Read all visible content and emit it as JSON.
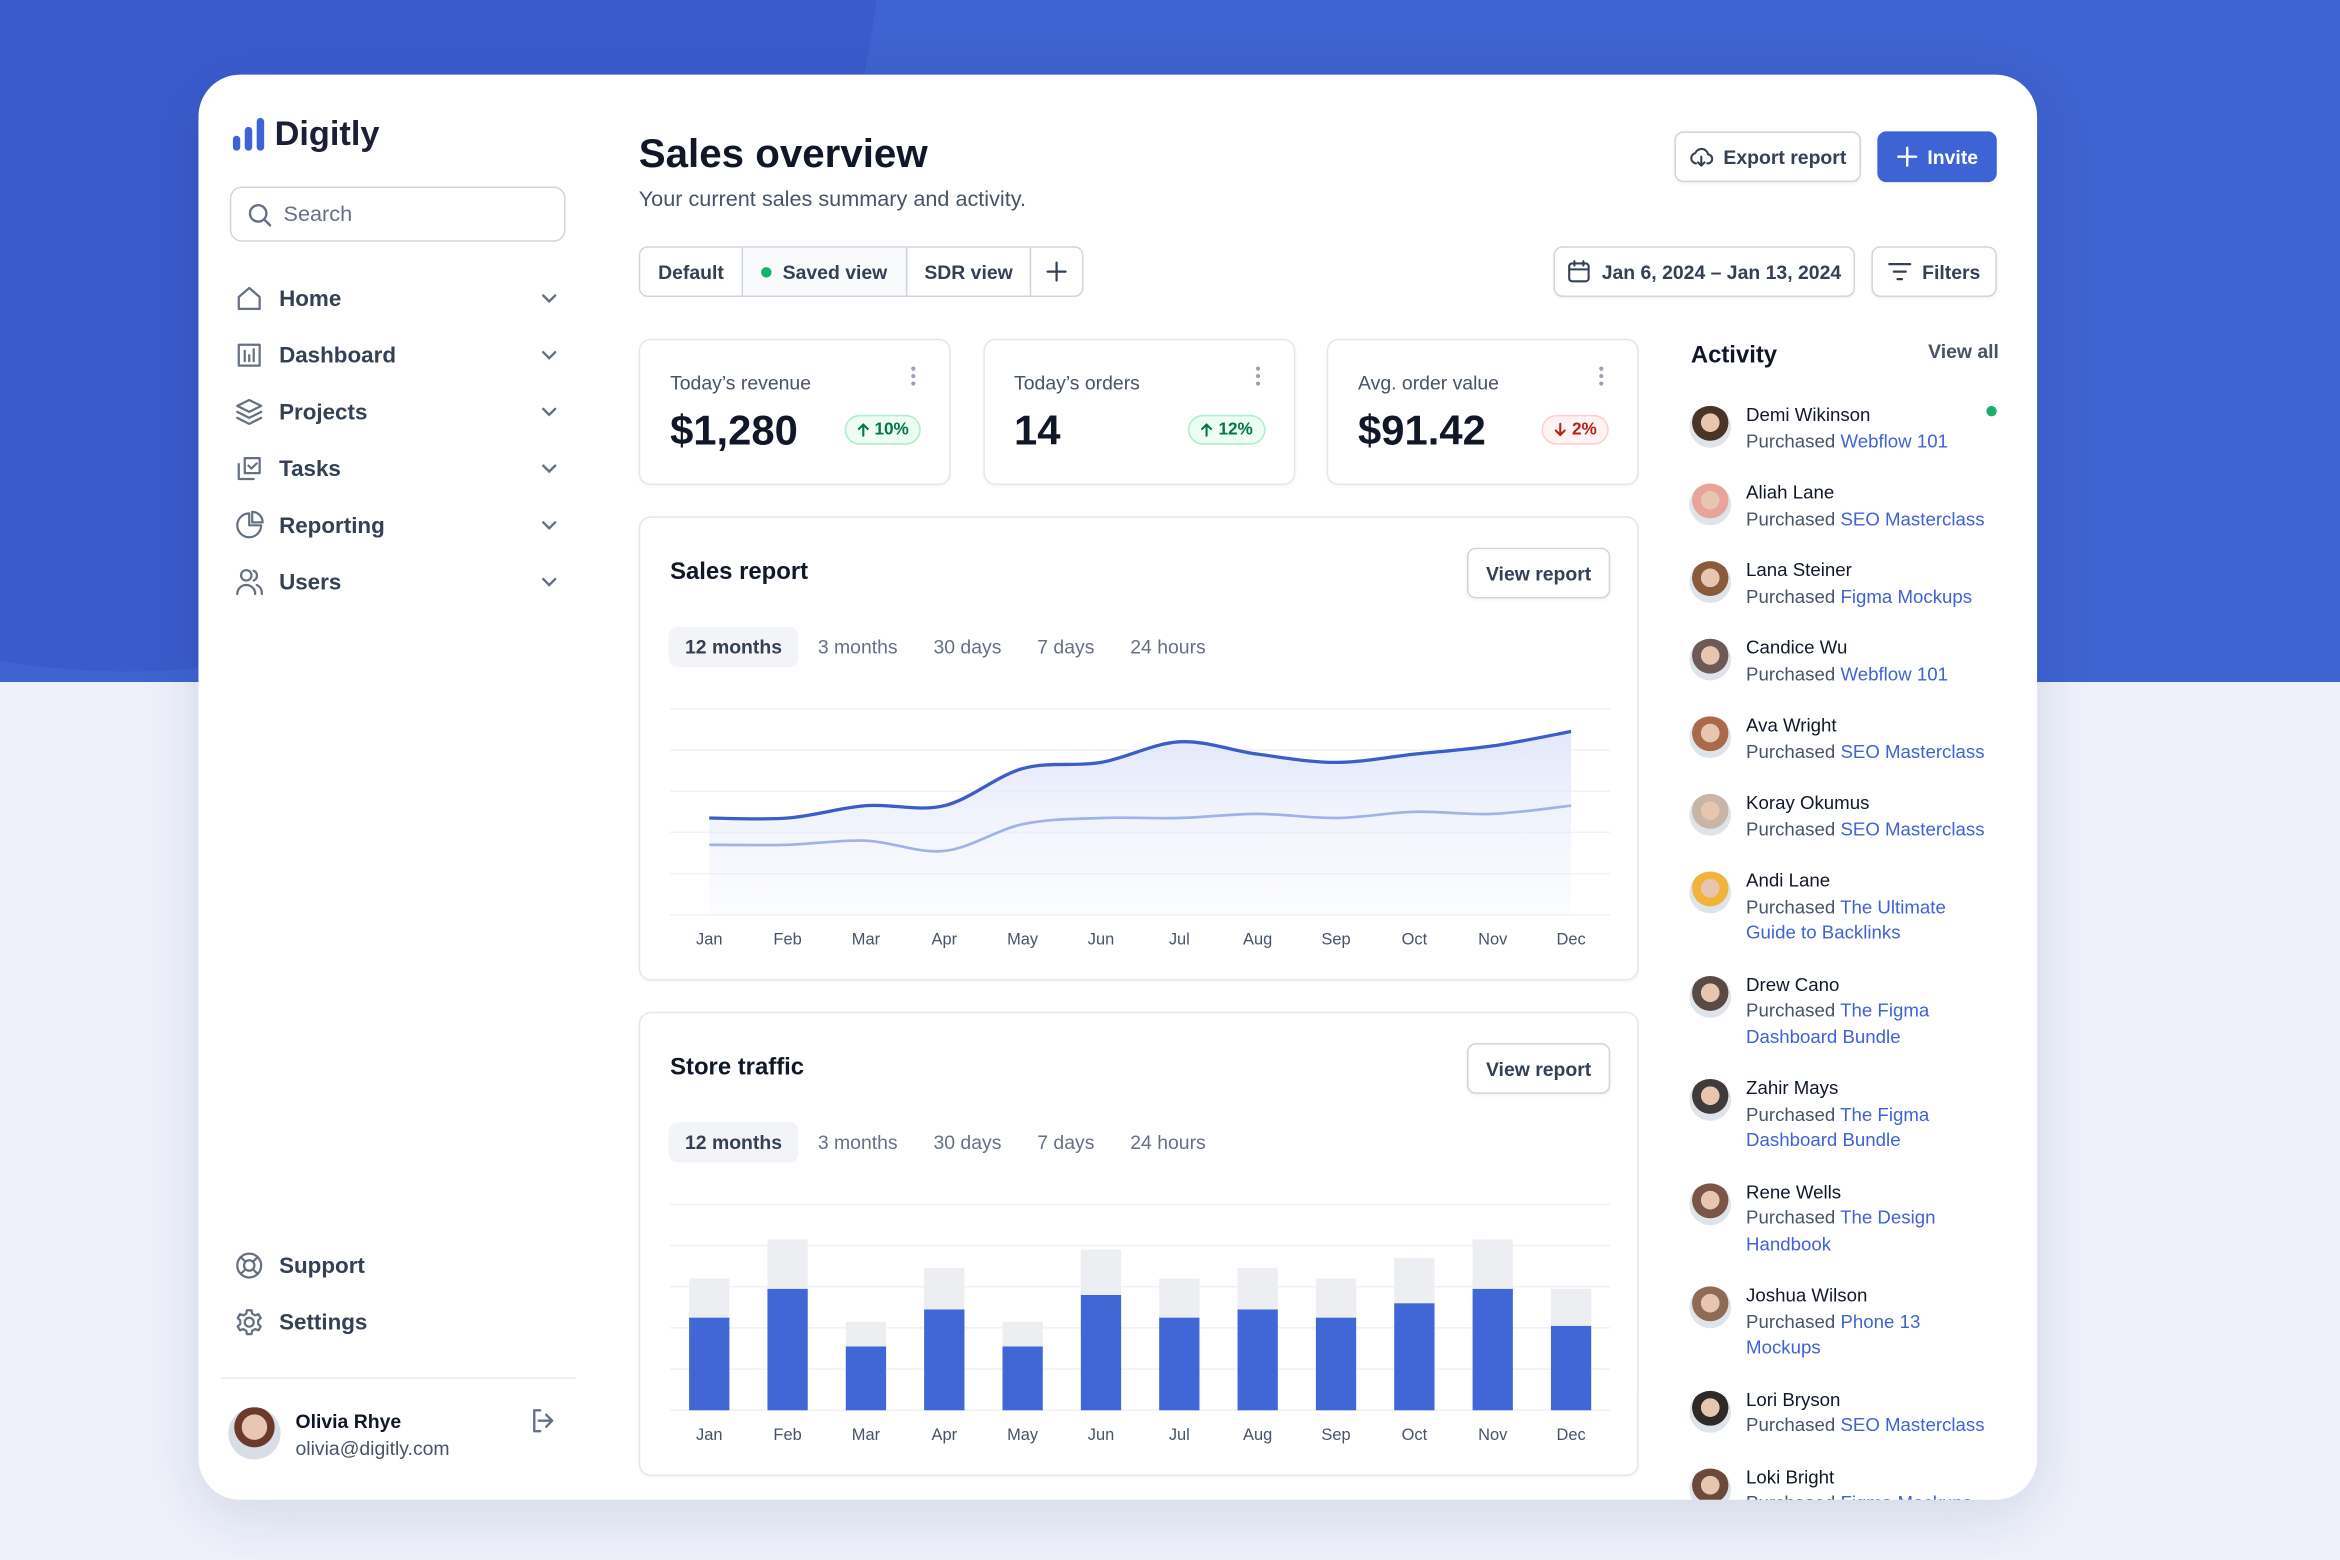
{
  "brand": "Digitly",
  "search_placeholder": "Search",
  "nav": [
    "Home",
    "Dashboard",
    "Projects",
    "Tasks",
    "Reporting",
    "Users"
  ],
  "nav_bottom": [
    "Support",
    "Settings"
  ],
  "user": {
    "name": "Olivia Rhye",
    "email": "olivia@digitly.com"
  },
  "header": {
    "title": "Sales overview",
    "subtitle": "Your current sales summary and activity.",
    "export": "Export report",
    "invite": "Invite"
  },
  "views": [
    "Default",
    "Saved view",
    "SDR view"
  ],
  "date_range": "Jan 6, 2024 – Jan 13, 2024",
  "filters": "Filters",
  "kpis": [
    {
      "label": "Today’s revenue",
      "value": "$1,280",
      "change": "10%",
      "direction": "up"
    },
    {
      "label": "Today’s orders",
      "value": "14",
      "change": "12%",
      "direction": "up"
    },
    {
      "label": "Avg. order value",
      "value": "$91.42",
      "change": "2%",
      "direction": "down"
    }
  ],
  "view_report": "View report",
  "ranges": [
    "12 months",
    "3 months",
    "30 days",
    "7 days",
    "24 hours"
  ],
  "chart_data": [
    {
      "type": "line",
      "title": "Sales report",
      "categories": [
        "Jan",
        "Feb",
        "Mar",
        "Apr",
        "May",
        "Jun",
        "Jul",
        "Aug",
        "Sep",
        "Oct",
        "Nov",
        "Dec"
      ],
      "series": [
        {
          "color": "#3c5cc8",
          "values": [
            47,
            47,
            53,
            53,
            71,
            74,
            84,
            78,
            74,
            78,
            82,
            89
          ]
        },
        {
          "color": "#9fb2ea",
          "values": [
            34,
            34,
            36,
            31,
            44,
            47,
            47,
            49,
            47,
            50,
            49,
            53
          ]
        }
      ],
      "ylim": [
        0,
        100
      ],
      "yticks": [
        0,
        20,
        40,
        60,
        80,
        100
      ],
      "grid": true
    },
    {
      "type": "stacked_bar",
      "title": "Store traffic",
      "categories": [
        "Jan",
        "Feb",
        "Mar",
        "Apr",
        "May",
        "Jun",
        "Jul",
        "Aug",
        "Sep",
        "Oct",
        "Nov",
        "Dec"
      ],
      "series": [
        {
          "color": "#4166d5",
          "values": [
            45,
            59,
            31,
            49,
            31,
            56,
            45,
            49,
            45,
            52,
            59,
            41
          ]
        },
        {
          "color": "#eceef2",
          "values": [
            19,
            24,
            12,
            20,
            12,
            22,
            19,
            20,
            19,
            22,
            24,
            18
          ]
        }
      ],
      "ylim": [
        0,
        100
      ],
      "yticks": [
        0,
        20,
        40,
        60,
        80,
        100
      ],
      "grid": true
    }
  ],
  "activity": {
    "title": "Activity",
    "view_all": "View all",
    "items": [
      {
        "name": "Demi Wikinson",
        "action": "Purchased",
        "product": "Webflow 101"
      },
      {
        "name": "Aliah Lane",
        "action": "Purchased",
        "product": "SEO Masterclass"
      },
      {
        "name": "Lana Steiner",
        "action": "Purchased",
        "product": "Figma Mockups"
      },
      {
        "name": "Candice Wu",
        "action": "Purchased",
        "product": "Webflow 101"
      },
      {
        "name": "Ava Wright",
        "action": "Purchased",
        "product": "SEO Masterclass"
      },
      {
        "name": "Koray Okumus",
        "action": "Purchased",
        "product": "SEO Masterclass"
      },
      {
        "name": "Andi Lane",
        "action": "Purchased",
        "product": "The Ultimate Guide to Backlinks"
      },
      {
        "name": "Drew Cano",
        "action": "Purchased",
        "product": "The Figma Dashboard Bundle"
      },
      {
        "name": "Zahir Mays",
        "action": "Purchased",
        "product": "The Figma Dashboard Bundle"
      },
      {
        "name": "Rene Wells",
        "action": "Purchased",
        "product": "The Design Handbook"
      },
      {
        "name": "Joshua Wilson",
        "action": "Purchased",
        "product": "Phone 13 Mockups"
      },
      {
        "name": "Lori Bryson",
        "action": "Purchased",
        "product": "SEO Masterclass"
      },
      {
        "name": "Loki Bright",
        "action": "Purchased",
        "product": "Figma Mockups"
      }
    ]
  }
}
